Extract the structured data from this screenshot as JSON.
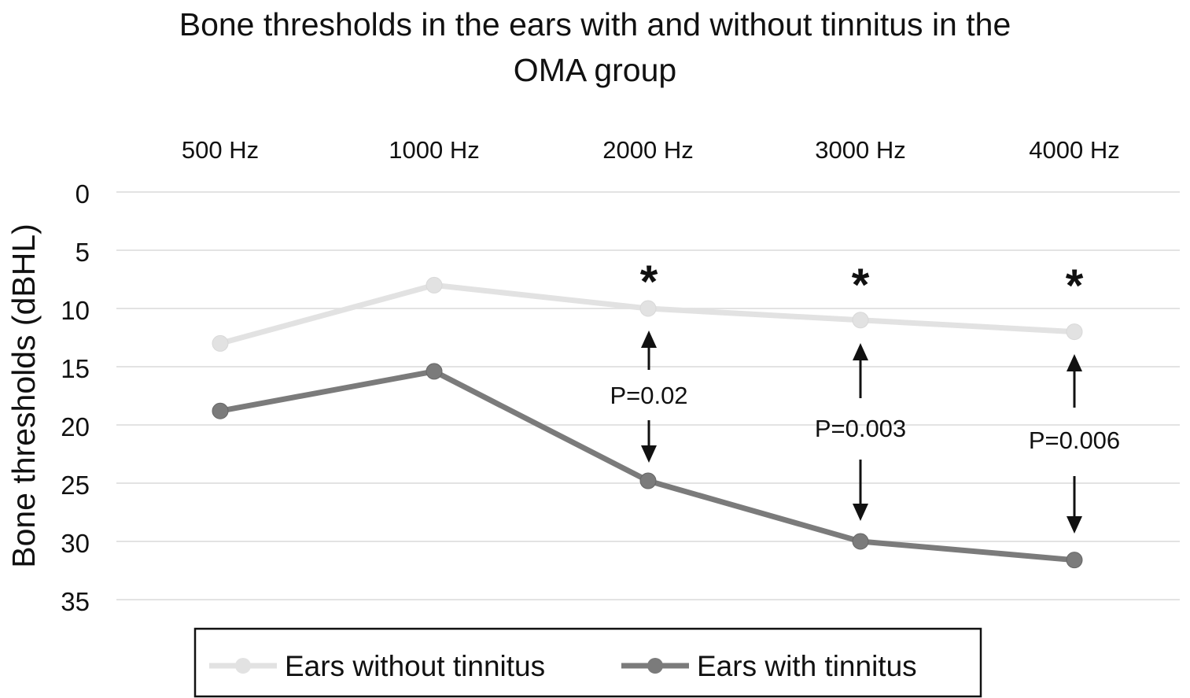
{
  "chart_data": {
    "type": "line",
    "title_lines": [
      "Bone thresholds in the ears with and without tinnitus in the",
      "OMA group"
    ],
    "xlabel": "",
    "ylabel": "Bone thresholds (dBHL)",
    "categories": [
      "500 Hz",
      "1000 Hz",
      "2000 Hz",
      "3000 Hz",
      "4000 Hz"
    ],
    "x_axis_position": "top",
    "y_inverted": true,
    "ylim": [
      0,
      35
    ],
    "yticks": [
      0,
      5,
      10,
      15,
      20,
      25,
      30,
      35
    ],
    "grid": true,
    "legend_position": "bottom",
    "series": [
      {
        "name": "Ears without tinnitus",
        "color": "#e2e2e2",
        "values": [
          13,
          8,
          10,
          11,
          12
        ]
      },
      {
        "name": "Ears with tinnitus",
        "color": "#7b7b7b",
        "values": [
          18.8,
          15.4,
          24.8,
          30,
          31.6
        ]
      }
    ],
    "annotations": [
      {
        "category": "2000 Hz",
        "p_value": "P=0.02",
        "marker": "*"
      },
      {
        "category": "3000 Hz",
        "p_value": "P=0.003",
        "marker": "*"
      },
      {
        "category": "4000 Hz",
        "p_value": "P=0.006",
        "marker": "*"
      }
    ]
  }
}
